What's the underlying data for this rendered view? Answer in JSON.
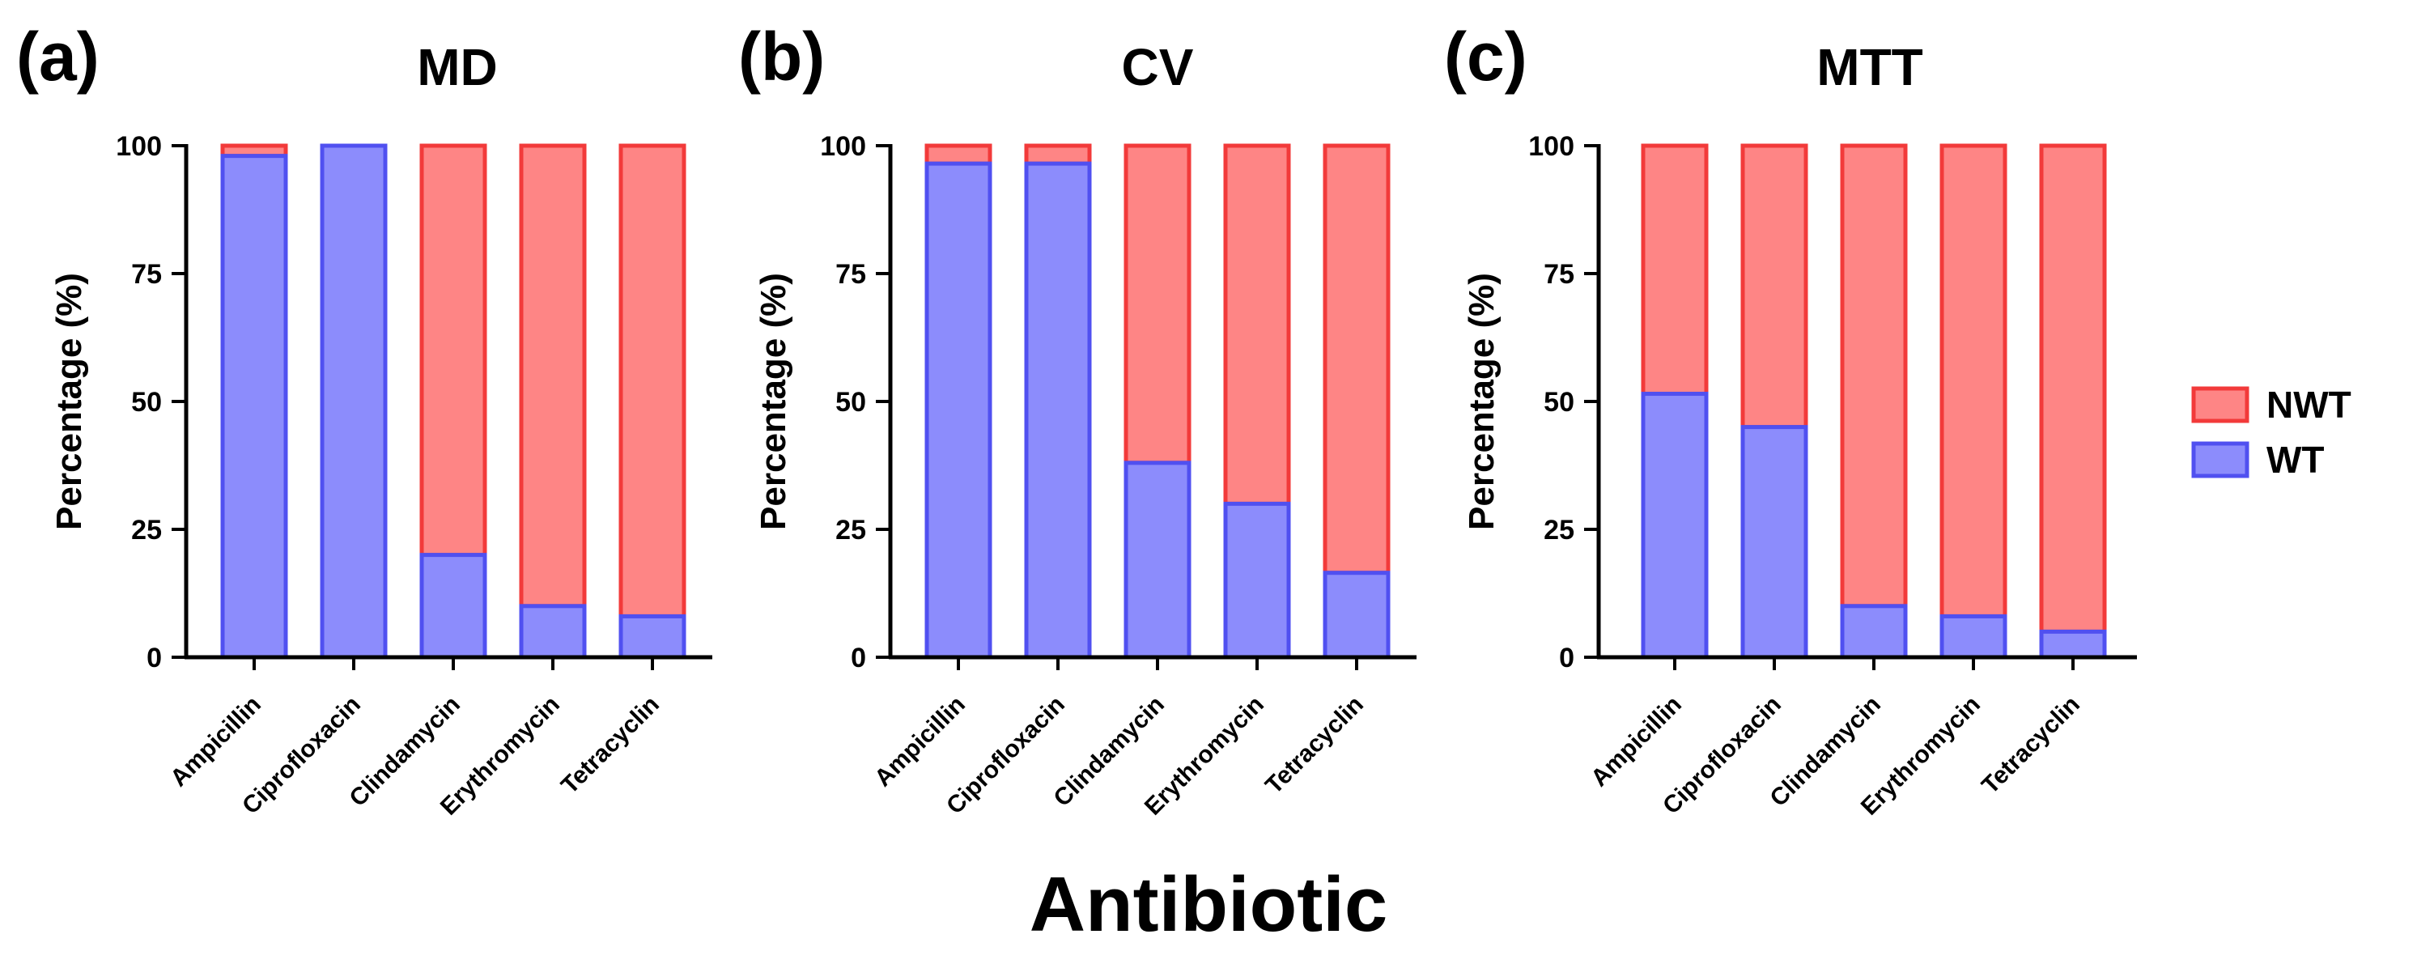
{
  "figure": {
    "xlabel": "Antibiotic",
    "legend_position": "right"
  },
  "colors": {
    "nwt_fill": "#fe8585",
    "nwt_stroke": "#f23a3a",
    "wt_fill": "#8c8cfc",
    "wt_stroke": "#5050f0",
    "axis": "#000000"
  },
  "chart_data": [
    {
      "type": "bar",
      "stacked": true,
      "panel_label": "(a)",
      "title": "MD",
      "xlabel": "",
      "ylabel": "Percentage (%)",
      "ylim": [
        0,
        100
      ],
      "yticks": [
        0,
        25,
        50,
        75,
        100
      ],
      "categories": [
        "Ampicillin",
        "Ciprofloxacin",
        "Clindamycin",
        "Erythromycin",
        "Tetracyclin"
      ],
      "series": [
        {
          "name": "WT",
          "values": [
            98,
            100,
            20,
            10,
            8
          ]
        },
        {
          "name": "NWT",
          "values": [
            2,
            0,
            80,
            90,
            92
          ]
        }
      ]
    },
    {
      "type": "bar",
      "stacked": true,
      "panel_label": "(b)",
      "title": "CV",
      "xlabel": "",
      "ylabel": "Percentage (%)",
      "ylim": [
        0,
        100
      ],
      "yticks": [
        0,
        25,
        50,
        75,
        100
      ],
      "categories": [
        "Ampicillin",
        "Ciprofloxacin",
        "Clindamycin",
        "Erythromycin",
        "Tetracyclin"
      ],
      "series": [
        {
          "name": "WT",
          "values": [
            96.5,
            96.5,
            38,
            30,
            16.5
          ]
        },
        {
          "name": "NWT",
          "values": [
            3.5,
            3.5,
            62,
            70,
            83.5
          ]
        }
      ]
    },
    {
      "type": "bar",
      "stacked": true,
      "panel_label": "(c)",
      "title": "MTT",
      "xlabel": "",
      "ylabel": "Percentage (%)",
      "ylim": [
        0,
        100
      ],
      "yticks": [
        0,
        25,
        50,
        75,
        100
      ],
      "categories": [
        "Ampicillin",
        "Ciprofloxacin",
        "Clindamycin",
        "Erythromycin",
        "Tetracyclin"
      ],
      "series": [
        {
          "name": "WT",
          "values": [
            51.5,
            45,
            10,
            8,
            5
          ]
        },
        {
          "name": "NWT",
          "values": [
            48.5,
            55,
            90,
            92,
            95
          ]
        }
      ]
    }
  ],
  "legend": {
    "items": [
      {
        "name": "NWT",
        "color_key": "nwt"
      },
      {
        "name": "WT",
        "color_key": "wt"
      }
    ]
  }
}
